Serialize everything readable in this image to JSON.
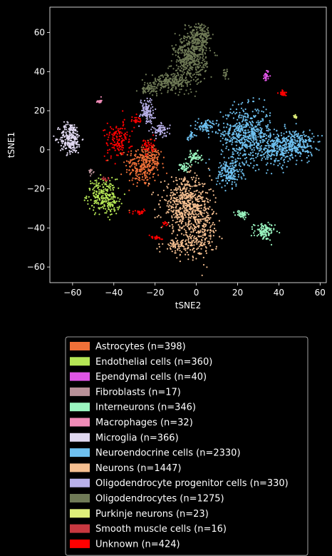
{
  "chart_data": {
    "type": "scatter",
    "xlabel": "tSNE2",
    "ylabel": "tSNE1",
    "xlim": [
      -71,
      63
    ],
    "ylim": [
      -68,
      73
    ],
    "xticks": [
      -60,
      -40,
      -20,
      0,
      20,
      40,
      60
    ],
    "yticks": [
      -60,
      -40,
      -20,
      0,
      20,
      40,
      60
    ],
    "grid": false,
    "background": "#000000",
    "legend_position": "below",
    "series": [
      {
        "name": "Astrocytes (n=398)",
        "color": "#f07038",
        "clusters": [
          {
            "cx": -26,
            "cy": -8,
            "sx": 4.2,
            "sy": 5.5,
            "n": 260
          },
          {
            "cx": -21,
            "cy": -4,
            "sx": 2.5,
            "sy": 3.0,
            "n": 60
          }
        ]
      },
      {
        "name": "Endothelial cells (n=360)",
        "color": "#b5e655",
        "clusters": [
          {
            "cx": -46,
            "cy": -23,
            "sx": 3.5,
            "sy": 4.0,
            "n": 180
          },
          {
            "cx": -42,
            "cy": -27,
            "sx": 2.4,
            "sy": 3.2,
            "n": 90
          }
        ]
      },
      {
        "name": "Ependymal cells (n=40)",
        "color": "#e055e6",
        "clusters": [
          {
            "cx": 34,
            "cy": 38,
            "sx": 0.6,
            "sy": 1.6,
            "n": 30
          }
        ]
      },
      {
        "name": "Fibroblasts (n=17)",
        "color": "#b89098",
        "clusters": [
          {
            "cx": -51,
            "cy": -11,
            "sx": 0.6,
            "sy": 0.6,
            "n": 12
          }
        ]
      },
      {
        "name": "Interneurons (n=346)",
        "color": "#9af5c0",
        "clusters": [
          {
            "cx": 33,
            "cy": -42,
            "sx": 2.5,
            "sy": 2.2,
            "n": 110
          },
          {
            "cx": -1,
            "cy": -4,
            "sx": 1.8,
            "sy": 1.5,
            "n": 60
          },
          {
            "cx": 22,
            "cy": -33,
            "sx": 1.5,
            "sy": 1.0,
            "n": 45
          },
          {
            "cx": -6,
            "cy": -9,
            "sx": 1.2,
            "sy": 1.2,
            "n": 35
          }
        ]
      },
      {
        "name": "Macrophages (n=32)",
        "color": "#f08cb8",
        "clusters": [
          {
            "cx": -47,
            "cy": 25,
            "sx": 0.5,
            "sy": 0.6,
            "n": 20
          }
        ]
      },
      {
        "name": "Microglia (n=366)",
        "color": "#e0d8f0",
        "clusters": [
          {
            "cx": -61,
            "cy": 6,
            "sx": 2.6,
            "sy": 4.0,
            "n": 260
          }
        ]
      },
      {
        "name": "Neuroendocrine cells (n=2330)",
        "color": "#6ec0ef",
        "clusters": [
          {
            "cx": 24,
            "cy": 8,
            "sx": 6.0,
            "sy": 7.0,
            "n": 560
          },
          {
            "cx": 48,
            "cy": 3,
            "sx": 4.5,
            "sy": 3.6,
            "n": 320
          },
          {
            "cx": 37,
            "cy": 0,
            "sx": 4.5,
            "sy": 4.5,
            "n": 180
          },
          {
            "cx": 16,
            "cy": -12,
            "sx": 3.0,
            "sy": 3.5,
            "n": 170
          },
          {
            "cx": 5,
            "cy": 12,
            "sx": 2.5,
            "sy": 1.6,
            "n": 80
          },
          {
            "cx": -3,
            "cy": 7,
            "sx": 1.0,
            "sy": 1.0,
            "n": 20
          }
        ]
      },
      {
        "name": "Neurons (n=1447)",
        "color": "#f5bf90",
        "clusters": [
          {
            "cx": -5,
            "cy": -28,
            "sx": 6.0,
            "sy": 6.5,
            "n": 560
          },
          {
            "cx": 2,
            "cy": -42,
            "sx": 4.0,
            "sy": 6.5,
            "n": 240
          },
          {
            "cx": -8,
            "cy": -49,
            "sx": 4.0,
            "sy": 2.0,
            "n": 100
          }
        ]
      },
      {
        "name": "Oligodendrocyte progenitor cells (n=330)",
        "color": "#b9b1ea",
        "clusters": [
          {
            "cx": -24,
            "cy": 20,
            "sx": 1.6,
            "sy": 3.2,
            "n": 110
          },
          {
            "cx": -17,
            "cy": 10,
            "sx": 2.0,
            "sy": 1.6,
            "n": 70
          }
        ]
      },
      {
        "name": "Oligodendrocytes (n=1275)",
        "color": "#6f7a56",
        "clusters": [
          {
            "cx": -3,
            "cy": 46,
            "sx": 4.0,
            "sy": 6.5,
            "n": 440
          },
          {
            "cx": 2,
            "cy": 57,
            "sx": 2.5,
            "sy": 4.0,
            "n": 200
          },
          {
            "cx": -13,
            "cy": 35,
            "sx": 4.5,
            "sy": 2.2,
            "n": 200
          },
          {
            "cx": -23,
            "cy": 31,
            "sx": 2.0,
            "sy": 1.2,
            "n": 60
          },
          {
            "cx": 14,
            "cy": 39,
            "sx": 0.8,
            "sy": 1.0,
            "n": 20
          }
        ]
      },
      {
        "name": "Purkinje neurons (n=23)",
        "color": "#dfef7a",
        "clusters": [
          {
            "cx": 48,
            "cy": 17,
            "sx": 0.6,
            "sy": 0.6,
            "n": 12
          }
        ]
      },
      {
        "name": "Smooth muscle cells (n=16)",
        "color": "#c83840",
        "clusters": [
          {
            "cx": -44,
            "cy": -15,
            "sx": 0.6,
            "sy": 0.6,
            "n": 10
          }
        ]
      },
      {
        "name": "Unknown (n=424)",
        "color": "#ff0000",
        "clusters": [
          {
            "cx": -38,
            "cy": 5,
            "sx": 3.2,
            "sy": 4.5,
            "n": 140
          },
          {
            "cx": -23,
            "cy": 2,
            "sx": 1.6,
            "sy": 2.0,
            "n": 40
          },
          {
            "cx": -30,
            "cy": 15,
            "sx": 1.3,
            "sy": 1.3,
            "n": 25
          },
          {
            "cx": 42,
            "cy": 29,
            "sx": 0.8,
            "sy": 0.7,
            "n": 25
          },
          {
            "cx": -28,
            "cy": -32,
            "sx": 1.5,
            "sy": 0.6,
            "n": 25
          },
          {
            "cx": -19,
            "cy": -45,
            "sx": 1.5,
            "sy": 0.6,
            "n": 22
          },
          {
            "cx": -15,
            "cy": -38,
            "sx": 0.6,
            "sy": 1.0,
            "n": 12
          }
        ]
      }
    ]
  }
}
